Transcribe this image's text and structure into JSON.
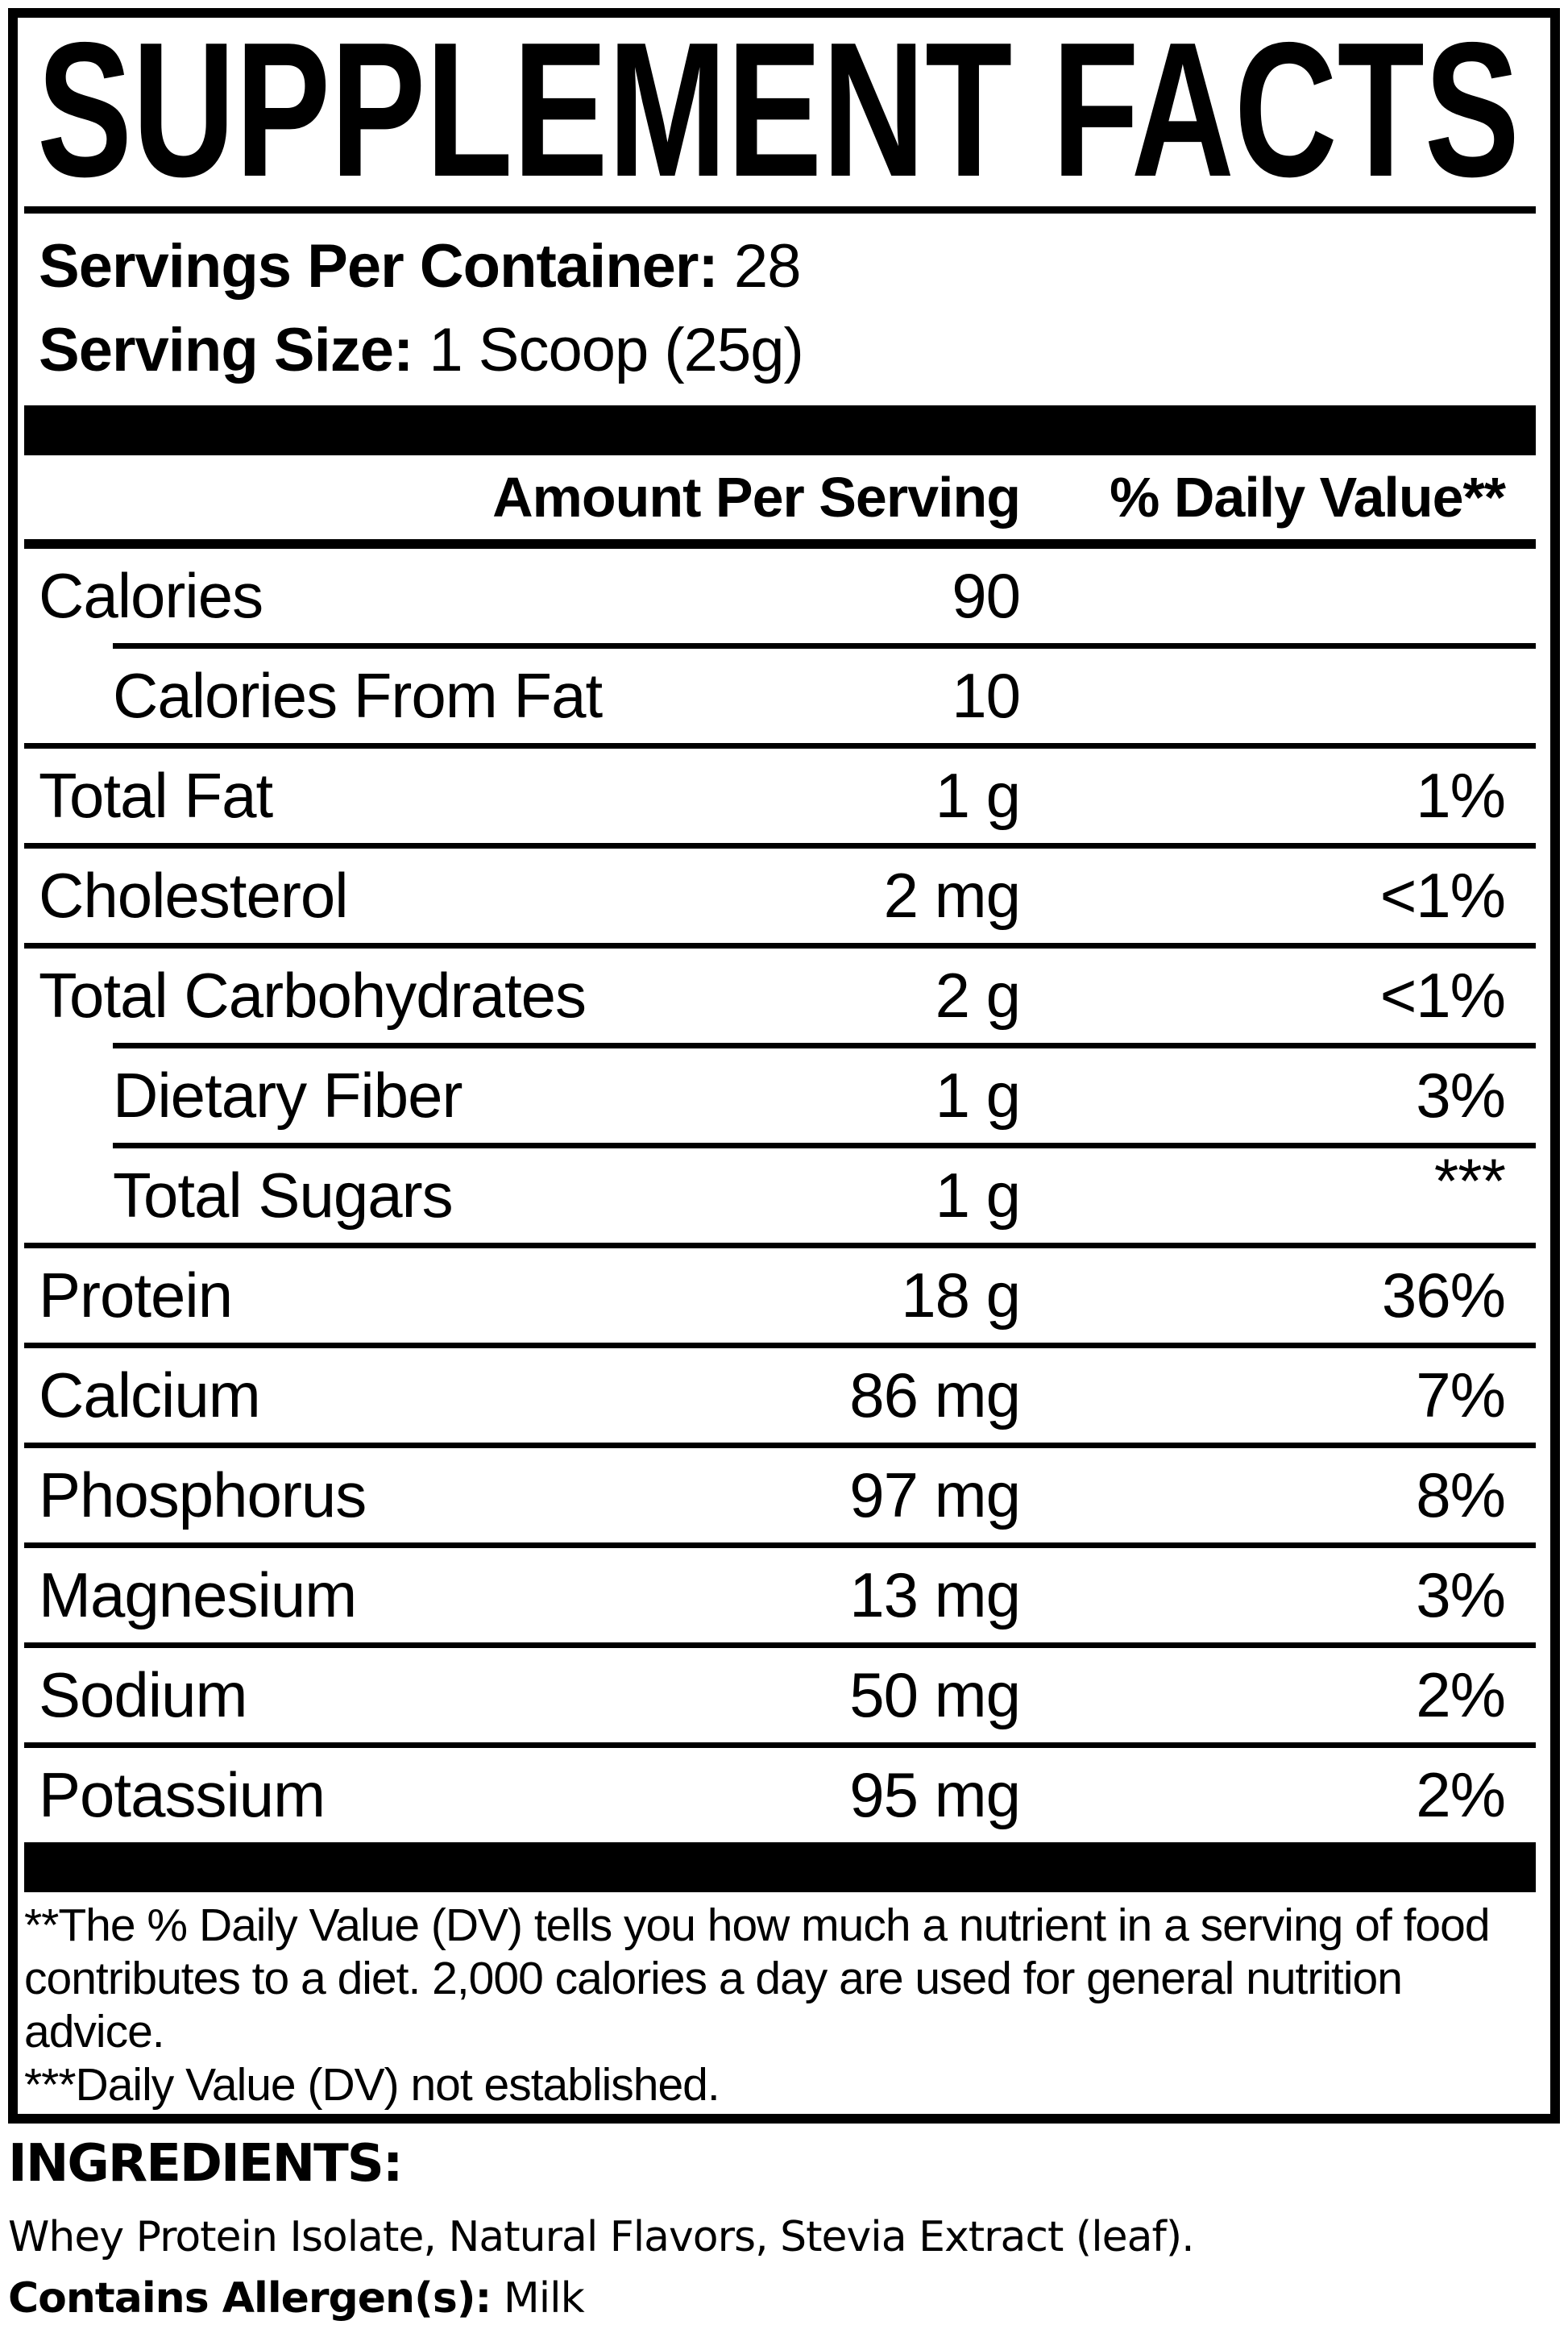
{
  "title": "SUPPLEMENT FACTS",
  "serving_info": {
    "servings_label": "Servings Per Container:",
    "servings_value": " 28",
    "size_label": "Serving Size:",
    "size_value": " 1 Scoop (25g)"
  },
  "table": {
    "amount_header": "Amount Per Serving",
    "dv_header": "% Daily Value**",
    "rows": [
      {
        "name": "Calories",
        "amount": "90",
        "dv": ""
      },
      {
        "name": "Calories From Fat",
        "amount": "10",
        "dv": ""
      },
      {
        "name": "Total Fat",
        "amount": "1 g",
        "dv": "1%"
      },
      {
        "name": "Cholesterol",
        "amount": "2 mg",
        "dv": "<1%"
      },
      {
        "name": "Total Carbohydrates",
        "amount": "2 g",
        "dv": "<1%"
      },
      {
        "name": "Dietary Fiber",
        "amount": "1 g",
        "dv": "3%"
      },
      {
        "name": "Total Sugars",
        "amount": "1 g",
        "dv": "***"
      },
      {
        "name": "Protein",
        "amount": "18 g",
        "dv": "36%"
      },
      {
        "name": "Calcium",
        "amount": "86 mg",
        "dv": "7%"
      },
      {
        "name": "Phosphorus",
        "amount": "97 mg",
        "dv": "8%"
      },
      {
        "name": "Magnesium",
        "amount": "13 mg",
        "dv": "3%"
      },
      {
        "name": "Sodium",
        "amount": "50 mg",
        "dv": "2%"
      },
      {
        "name": "Potassium",
        "amount": "95 mg",
        "dv": "2%"
      }
    ]
  },
  "footnotes": {
    "daily_value_note": "**The % Daily Value (DV) tells you how much a nutrient in a serving of food contributes to a diet. 2,000 calories a day are used for general nutrition advice.",
    "not_established_note": "***Daily Value (DV) not established."
  },
  "ingredients": {
    "heading": "INGREDIENTS:",
    "list": "Whey Protein Isolate, Natural Flavors, Stevia Extract (leaf).",
    "allergen_label": "Contains Allergen(s):",
    "allergen_value": " Milk"
  },
  "colors": {
    "ink": "#000000",
    "paper": "#ffffff"
  }
}
